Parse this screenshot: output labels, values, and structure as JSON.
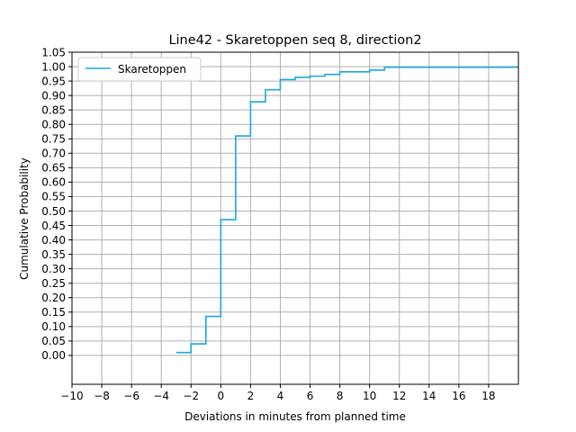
{
  "chart_data": {
    "type": "line",
    "title": "Line42 - Skaretoppen seq 8, direction2",
    "xlabel": "Deviations in minutes from planned time",
    "ylabel": "Cumulative Probability",
    "xlim": [
      -10,
      20
    ],
    "ylim": [
      -0.1,
      1.05
    ],
    "xticks": [
      -10,
      -8,
      -6,
      -4,
      -2,
      0,
      2,
      4,
      6,
      8,
      10,
      12,
      14,
      16,
      18
    ],
    "xtick_labels": [
      "−10",
      "−8",
      "−6",
      "−4",
      "−2",
      "0",
      "2",
      "4",
      "6",
      "8",
      "10",
      "12",
      "14",
      "16",
      "18"
    ],
    "yticks": [
      0.0,
      0.05,
      0.1,
      0.15,
      0.2,
      0.25,
      0.3,
      0.35,
      0.4,
      0.45,
      0.5,
      0.55,
      0.6,
      0.65,
      0.7,
      0.75,
      0.8,
      0.85,
      0.9,
      0.95,
      1.0,
      1.05
    ],
    "ytick_labels": [
      "0.00",
      "0.05",
      "0.10",
      "0.15",
      "0.20",
      "0.25",
      "0.30",
      "0.35",
      "0.40",
      "0.45",
      "0.50",
      "0.55",
      "0.60",
      "0.65",
      "0.70",
      "0.75",
      "0.80",
      "0.85",
      "0.90",
      "0.95",
      "1.00",
      "1.05"
    ],
    "grid": true,
    "legend_position": "top-left",
    "series": [
      {
        "name": "Skaretoppen",
        "color": "#1aa7e0",
        "drawstyle": "steps-post",
        "x": [
          -3,
          -2,
          -1,
          0,
          1,
          2,
          3,
          4,
          5,
          6,
          7,
          8,
          10,
          11,
          20
        ],
        "y": [
          0.01,
          0.04,
          0.135,
          0.47,
          0.76,
          0.878,
          0.92,
          0.955,
          0.963,
          0.967,
          0.973,
          0.982,
          0.988,
          0.998,
          0.998
        ]
      }
    ]
  }
}
